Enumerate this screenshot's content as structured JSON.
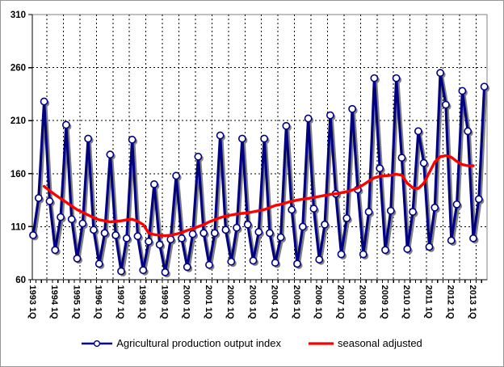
{
  "chart_data": {
    "type": "line",
    "title": "",
    "x_axis": {
      "labels": [
        "1993 1Q",
        "1994 1Q",
        "1995 1Q",
        "1996 1Q",
        "1997 1Q",
        "1998 1Q",
        "1999 1Q",
        "2000 1Q",
        "2001 1Q",
        "2002 1Q",
        "2003 1Q",
        "2004 1Q",
        "2005 1Q",
        "2006 1Q",
        "2007 1Q",
        "2008 1Q",
        "2009 1Q",
        "2010 1Q",
        "2011 1Q",
        "2012 1Q",
        "2013 1Q"
      ],
      "label_every_n_quarters": 4,
      "gridline_every_n_quarters": 3,
      "tick_every_n_quarters": 1,
      "label_rotation_deg": 90
    },
    "y_axis": {
      "ticks": [
        60,
        110,
        160,
        210,
        260,
        310
      ],
      "min": 60,
      "max": 310
    },
    "grid": {
      "style": "dashed",
      "color": "#000000"
    },
    "colors": {
      "plot_border": "#808080",
      "axis": "#000000",
      "background": "#ffffff",
      "shadow": "#808080",
      "marker_fill": "#ffffff"
    },
    "legend_position": "bottom",
    "series": [
      {
        "name": "Agricultural production output index",
        "color": "#000080",
        "marker": "circle",
        "line_width": 3.2,
        "start_quarter_index": 0,
        "values": [
          102,
          137,
          228,
          134,
          88,
          119,
          206,
          117,
          80,
          113,
          193,
          107,
          75,
          104,
          178,
          102,
          68,
          99,
          192,
          101,
          69,
          96,
          150,
          93,
          67,
          98,
          158,
          99,
          72,
          103,
          176,
          104,
          74,
          104,
          196,
          107,
          77,
          109,
          193,
          112,
          78,
          105,
          193,
          104,
          76,
          100,
          205,
          126,
          75,
          110,
          212,
          127,
          79,
          112,
          215,
          141,
          84,
          118,
          221,
          145,
          84,
          124,
          250,
          165,
          88,
          125,
          250,
          175,
          89,
          124,
          200,
          170,
          91,
          128,
          255,
          225,
          97,
          131,
          238,
          200,
          99,
          136,
          242
        ]
      },
      {
        "name": "seasonal adjusted",
        "color": "#ff0000",
        "marker": "none",
        "line_width": 3.4,
        "start_quarter_index": 2,
        "values": [
          148,
          144,
          140,
          136.5,
          133,
          129.5,
          126,
          123.5,
          121,
          118.5,
          116.5,
          115.5,
          114.5,
          115,
          115.5,
          116.5,
          117,
          115,
          112,
          104,
          102.5,
          102,
          101.5,
          102,
          103,
          104.5,
          106.5,
          108,
          110,
          112,
          114.5,
          116.5,
          118.5,
          120,
          121,
          122,
          122.5,
          123,
          124,
          125,
          126,
          128,
          130,
          131,
          132.5,
          134,
          135,
          136,
          136.5,
          137.5,
          138.5,
          139.5,
          140.5,
          141,
          142,
          143,
          144.5,
          146.5,
          149.5,
          153,
          156,
          157.5,
          158,
          158.5,
          159.5,
          158.5,
          151,
          146.5,
          146,
          151,
          161,
          171,
          176,
          177,
          175.5,
          171.5,
          168.5,
          167.5,
          167.5
        ]
      }
    ]
  }
}
